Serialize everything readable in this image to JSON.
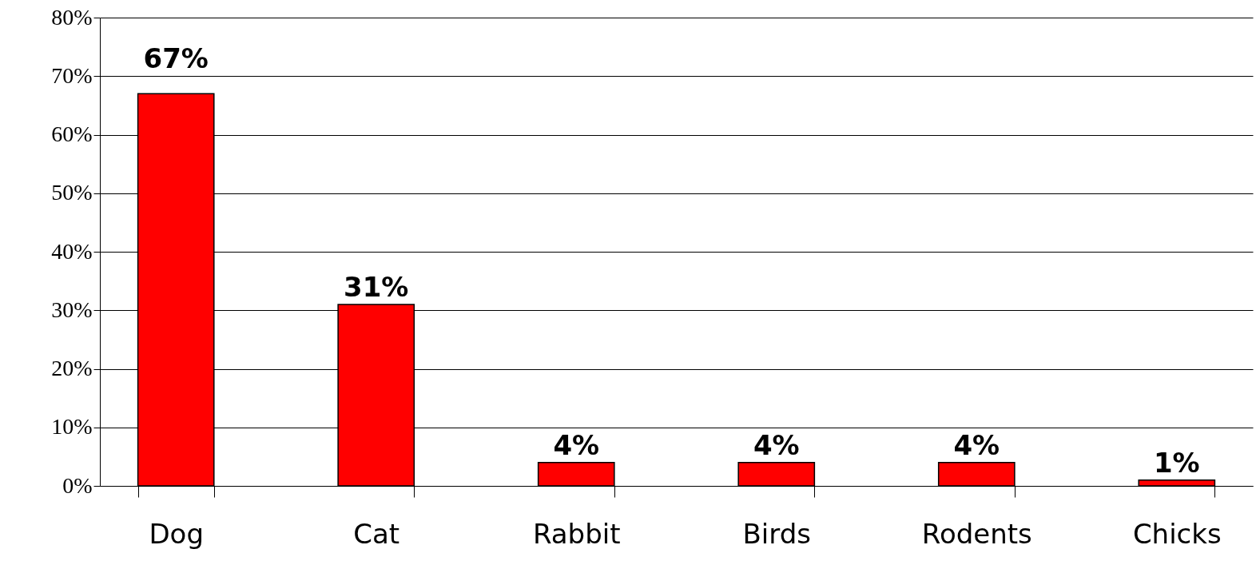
{
  "chart_data": {
    "type": "bar",
    "categories": [
      "Dog",
      "Cat",
      "Rabbit",
      "Birds",
      "Rodents",
      "Chicks"
    ],
    "values": [
      67,
      31,
      4,
      4,
      4,
      1
    ],
    "value_labels": [
      "67%",
      "31%",
      "4%",
      "4%",
      "4%",
      "1%"
    ],
    "color": "#ff0000",
    "ylim": [
      0,
      80
    ],
    "yticks": [
      {
        "value": 0,
        "label": "0%"
      },
      {
        "value": 10,
        "label": "10%"
      },
      {
        "value": 20,
        "label": "20%"
      },
      {
        "value": 30,
        "label": "30%"
      },
      {
        "value": 40,
        "label": "40%"
      },
      {
        "value": 50,
        "label": "50%"
      },
      {
        "value": 60,
        "label": "60%"
      },
      {
        "value": 70,
        "label": "70%"
      },
      {
        "value": 80,
        "label": "80%"
      }
    ],
    "grid": "y"
  }
}
